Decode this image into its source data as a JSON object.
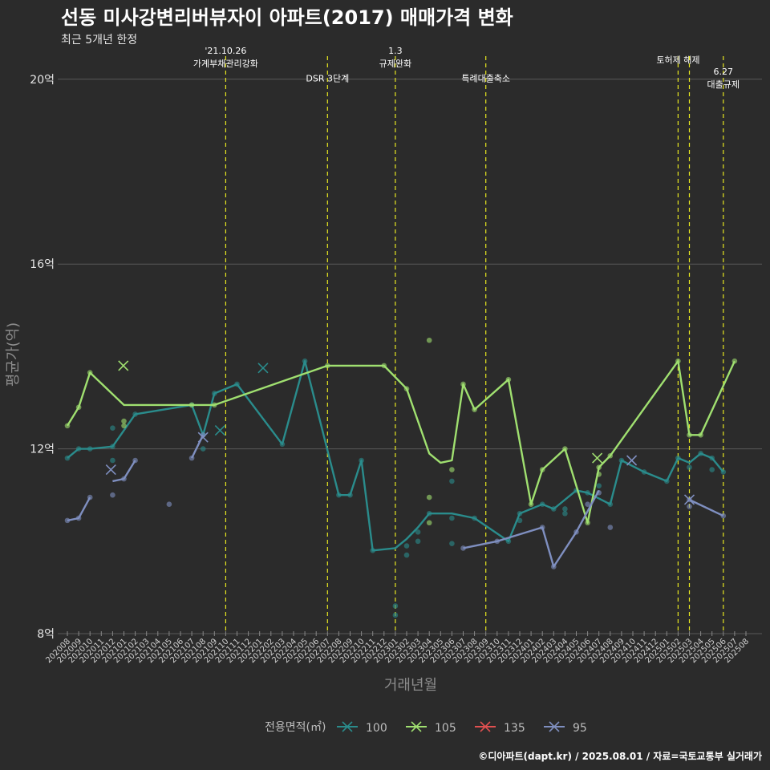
{
  "header": {
    "title": "선동 미사강변리버뷰자이 아파트(2017) 매매가격 변화",
    "subtitle": "최근 5개년 한정"
  },
  "caption": "©디아파트(dapt.kr) / 2025.08.01 / 자료=국토교통부 실거래가",
  "chart_data": {
    "type": "line",
    "xlabel": "거래년월",
    "ylabel": "평균가(억)",
    "ylim": [
      8,
      20.5
    ],
    "yticks": [
      {
        "value": 8,
        "label": "8억"
      },
      {
        "value": 12,
        "label": "12억"
      },
      {
        "value": 16,
        "label": "16억"
      },
      {
        "value": 20,
        "label": "20억"
      }
    ],
    "grid": true,
    "x_categories": [
      "202008",
      "202009",
      "202010",
      "202011",
      "202012",
      "202101",
      "202102",
      "202103",
      "202104",
      "202105",
      "202106",
      "202107",
      "202108",
      "202109",
      "202110",
      "202111",
      "202112",
      "202201",
      "202202",
      "202203",
      "202204",
      "202205",
      "202206",
      "202207",
      "202208",
      "202209",
      "202210",
      "202211",
      "202212",
      "202301",
      "202302",
      "202303",
      "202304",
      "202305",
      "202306",
      "202307",
      "202308",
      "202309",
      "202310",
      "202311",
      "202312",
      "202401",
      "202402",
      "202403",
      "202404",
      "202405",
      "202406",
      "202407",
      "202408",
      "202409",
      "202410",
      "202411",
      "202412",
      "202501",
      "202502",
      "202503",
      "202504",
      "202505",
      "202506",
      "202507",
      "202508"
    ],
    "events": [
      {
        "x": 14.0,
        "label_lines": [
          "'21.10.26",
          "가계부채관리강화"
        ],
        "label_y": 20.55
      },
      {
        "x": 23.0,
        "label_lines": [
          "DSR 3단계"
        ],
        "label_y": 19.95
      },
      {
        "x": 29.0,
        "label_lines": [
          "1.3",
          "규제완화"
        ],
        "label_y": 20.55
      },
      {
        "x": 37.0,
        "label_lines": [
          "특례대출축소"
        ],
        "label_y": 19.95
      },
      {
        "x": 54.0,
        "label_lines": [
          "토허제 해제"
        ],
        "label_y": 20.35
      },
      {
        "x": 55.0,
        "label_lines": [],
        "label_y": 20.35
      },
      {
        "x": 58.0,
        "label_lines": [
          "6.27",
          "대출규제"
        ],
        "label_y": 20.1
      }
    ],
    "legend": {
      "title": "전용면적(㎡)",
      "position": "bottom",
      "entries": [
        {
          "name": "100",
          "color": "#2a8c8c"
        },
        {
          "name": "105",
          "color": "#a0e070"
        },
        {
          "name": "135",
          "color": "#e05050"
        },
        {
          "name": "95",
          "color": "#7f8fc0"
        }
      ]
    },
    "series": [
      {
        "name": "100",
        "color": "#2a8c8c",
        "line": [
          [
            0,
            11.8
          ],
          [
            1,
            12
          ],
          [
            2,
            12
          ],
          [
            4,
            12.05
          ],
          [
            6,
            12.75
          ],
          [
            11,
            12.95
          ],
          [
            12,
            12.3
          ],
          [
            13,
            13.2
          ],
          [
            15,
            13.4
          ],
          [
            19,
            12.1
          ],
          [
            21,
            13.9
          ],
          [
            24,
            11
          ],
          [
            25,
            11
          ],
          [
            26,
            11.75
          ],
          [
            27,
            9.8
          ],
          [
            29,
            9.85
          ],
          [
            30,
            10.05
          ],
          [
            31,
            10.3
          ],
          [
            32,
            10.6
          ],
          [
            34,
            10.6
          ],
          [
            36,
            10.5
          ],
          [
            39,
            10
          ],
          [
            40,
            10.6
          ],
          [
            42,
            10.8
          ],
          [
            43,
            10.7
          ],
          [
            45,
            11.1
          ],
          [
            46,
            11.05
          ],
          [
            48,
            10.8
          ],
          [
            49,
            11.75
          ],
          [
            51,
            11.5
          ],
          [
            53,
            11.3
          ],
          [
            54,
            11.8
          ],
          [
            55,
            11.7
          ],
          [
            56,
            11.9
          ],
          [
            57,
            11.8
          ],
          [
            58,
            11.5
          ]
        ],
        "points": [
          [
            0,
            11.8
          ],
          [
            1,
            12
          ],
          [
            2,
            12
          ],
          [
            4,
            12.05
          ],
          [
            4,
            12.45
          ],
          [
            4,
            11.75
          ],
          [
            6,
            12.75
          ],
          [
            11,
            12.95
          ],
          [
            12,
            12.3
          ],
          [
            12,
            12
          ],
          [
            13,
            13.2
          ],
          [
            15,
            13.4
          ],
          [
            19,
            12.1
          ],
          [
            21,
            13.9
          ],
          [
            24,
            11
          ],
          [
            25,
            11
          ],
          [
            26,
            11.75
          ],
          [
            27,
            9.8
          ],
          [
            29,
            8.4
          ],
          [
            29,
            8.6
          ],
          [
            30,
            9.7
          ],
          [
            30,
            9.9
          ],
          [
            31,
            10
          ],
          [
            31,
            10.2
          ],
          [
            32,
            10.6
          ],
          [
            34,
            11.3
          ],
          [
            34,
            10.5
          ],
          [
            34,
            9.95
          ],
          [
            36,
            10.5
          ],
          [
            39,
            10
          ],
          [
            40,
            10.6
          ],
          [
            40,
            10.45
          ],
          [
            42,
            10.8
          ],
          [
            43,
            10.7
          ],
          [
            44,
            10.6
          ],
          [
            44,
            10.7
          ],
          [
            45,
            11.1
          ],
          [
            46,
            11.05
          ],
          [
            47,
            11.2
          ],
          [
            48,
            10.8
          ],
          [
            49,
            11.75
          ],
          [
            51,
            11.5
          ],
          [
            53,
            11.3
          ],
          [
            54,
            11.8
          ],
          [
            55,
            11.6
          ],
          [
            56,
            11.9
          ],
          [
            57,
            11.8
          ],
          [
            57,
            11.55
          ],
          [
            58,
            11.5
          ]
        ],
        "crosses": [
          [
            17.3,
            13.75
          ],
          [
            13.5,
            12.4
          ]
        ]
      },
      {
        "name": "105",
        "color": "#a0e070",
        "line": [
          [
            0,
            12.5
          ],
          [
            1,
            12.9
          ],
          [
            2,
            13.65
          ],
          [
            5,
            12.95
          ],
          [
            13,
            12.95
          ],
          [
            23,
            13.8
          ],
          [
            28,
            13.8
          ],
          [
            30,
            13.3
          ],
          [
            32,
            11.9
          ],
          [
            33,
            11.7
          ],
          [
            34,
            11.75
          ],
          [
            35,
            13.4
          ],
          [
            36,
            12.85
          ],
          [
            39,
            13.5
          ],
          [
            41,
            10.8
          ],
          [
            42,
            11.55
          ],
          [
            44,
            12
          ],
          [
            46,
            10.4
          ],
          [
            47,
            11.6
          ],
          [
            48,
            11.85
          ],
          [
            54,
            13.9
          ],
          [
            55,
            12.3
          ],
          [
            56,
            12.3
          ],
          [
            59,
            13.9
          ]
        ],
        "points": [
          [
            0,
            12.5
          ],
          [
            1,
            12.9
          ],
          [
            2,
            13.65
          ],
          [
            5,
            12.6
          ],
          [
            5,
            12.5
          ],
          [
            11,
            12.95
          ],
          [
            13,
            12.95
          ],
          [
            23,
            13.8
          ],
          [
            28,
            13.8
          ],
          [
            30,
            13.3
          ],
          [
            32,
            14.35
          ],
          [
            32,
            10.95
          ],
          [
            32,
            10.4
          ],
          [
            34,
            11.55
          ],
          [
            35,
            13.4
          ],
          [
            36,
            12.85
          ],
          [
            39,
            13.5
          ],
          [
            41,
            10.8
          ],
          [
            42,
            11.55
          ],
          [
            44,
            12
          ],
          [
            46,
            10.4
          ],
          [
            47,
            11.45
          ],
          [
            47,
            11.6
          ],
          [
            48,
            11.85
          ],
          [
            54,
            13.9
          ],
          [
            55,
            12.3
          ],
          [
            56,
            12.3
          ],
          [
            59,
            13.9
          ]
        ],
        "crosses": [
          [
            4.95,
            13.8
          ],
          [
            46.85,
            11.8
          ]
        ]
      },
      {
        "name": "135",
        "color": "#e05050",
        "line": [],
        "points": [],
        "crosses": []
      },
      {
        "name": "95",
        "color": "#7f8fc0",
        "line": [
          [
            0,
            10.45
          ],
          [
            1,
            10.5
          ],
          [
            2,
            10.95
          ]
        ],
        "line2": [
          [
            4,
            11.3
          ],
          [
            5,
            11.35
          ],
          [
            6,
            11.75
          ]
        ],
        "line3": [
          [
            11,
            11.8
          ],
          [
            12,
            12.3
          ]
        ],
        "line4": [
          [
            35,
            9.85
          ],
          [
            38,
            10
          ],
          [
            42,
            10.3
          ],
          [
            43,
            9.45
          ],
          [
            45,
            10.2
          ],
          [
            47,
            11.1
          ]
        ],
        "line5": [
          [
            55,
            10.9
          ],
          [
            58,
            10.55
          ]
        ],
        "points": [
          [
            0,
            10.45
          ],
          [
            1,
            10.5
          ],
          [
            2,
            10.95
          ],
          [
            4,
            11
          ],
          [
            5,
            11.35
          ],
          [
            6,
            11.75
          ],
          [
            9,
            10.8
          ],
          [
            11,
            11.8
          ],
          [
            12,
            12.3
          ],
          [
            35,
            9.85
          ],
          [
            38,
            10
          ],
          [
            42,
            10.3
          ],
          [
            43,
            9.45
          ],
          [
            45,
            10.2
          ],
          [
            46,
            10.8
          ],
          [
            47,
            11.05
          ],
          [
            48,
            10.3
          ],
          [
            55,
            10.9
          ],
          [
            55,
            10.75
          ],
          [
            58,
            10.55
          ]
        ],
        "crosses": [
          [
            3.85,
            11.55
          ],
          [
            12,
            12.25
          ],
          [
            49.9,
            11.75
          ],
          [
            55,
            10.9
          ]
        ]
      }
    ]
  }
}
